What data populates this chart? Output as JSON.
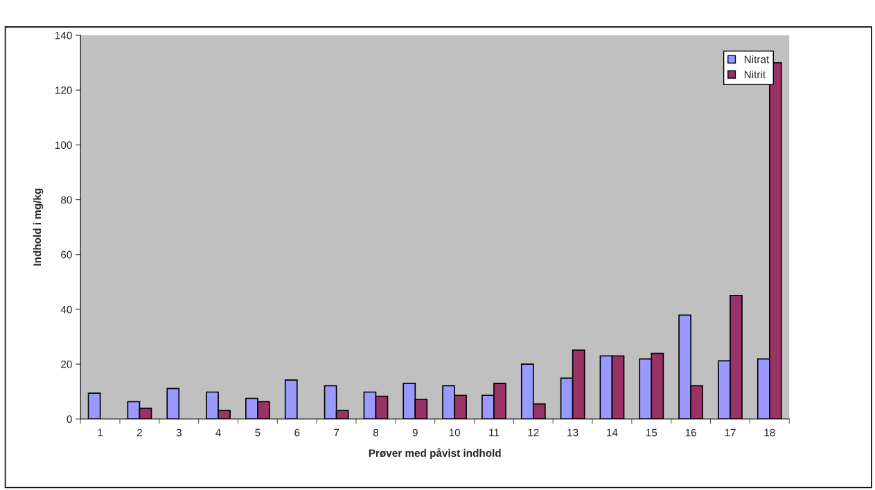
{
  "chart_data": {
    "type": "bar",
    "xlabel": "Prøver med påvist indhold",
    "ylabel": "Indhold i mg/kg",
    "categories": [
      "1",
      "2",
      "3",
      "4",
      "5",
      "6",
      "7",
      "8",
      "9",
      "10",
      "11",
      "12",
      "13",
      "14",
      "15",
      "16",
      "17",
      "18"
    ],
    "series": [
      {
        "name": "Nitrat",
        "color": "#9999ff",
        "values": [
          9.4,
          6.3,
          11.1,
          9.8,
          7.5,
          14.2,
          12.1,
          9.8,
          13.0,
          12.1,
          8.6,
          20.0,
          14.9,
          23.0,
          21.9,
          37.9,
          21.2,
          21.9
        ]
      },
      {
        "name": "Nitrit",
        "color": "#993366",
        "values": [
          null,
          3.9,
          null,
          3.1,
          6.3,
          null,
          3.1,
          8.3,
          7.1,
          8.6,
          13.0,
          5.5,
          25.1,
          23.0,
          23.9,
          12.1,
          45.1,
          130
        ]
      }
    ],
    "ylim": [
      0,
      140
    ],
    "yticks": [
      0,
      20,
      40,
      60,
      80,
      100,
      120,
      140
    ],
    "grid": false,
    "legend": "top right"
  }
}
